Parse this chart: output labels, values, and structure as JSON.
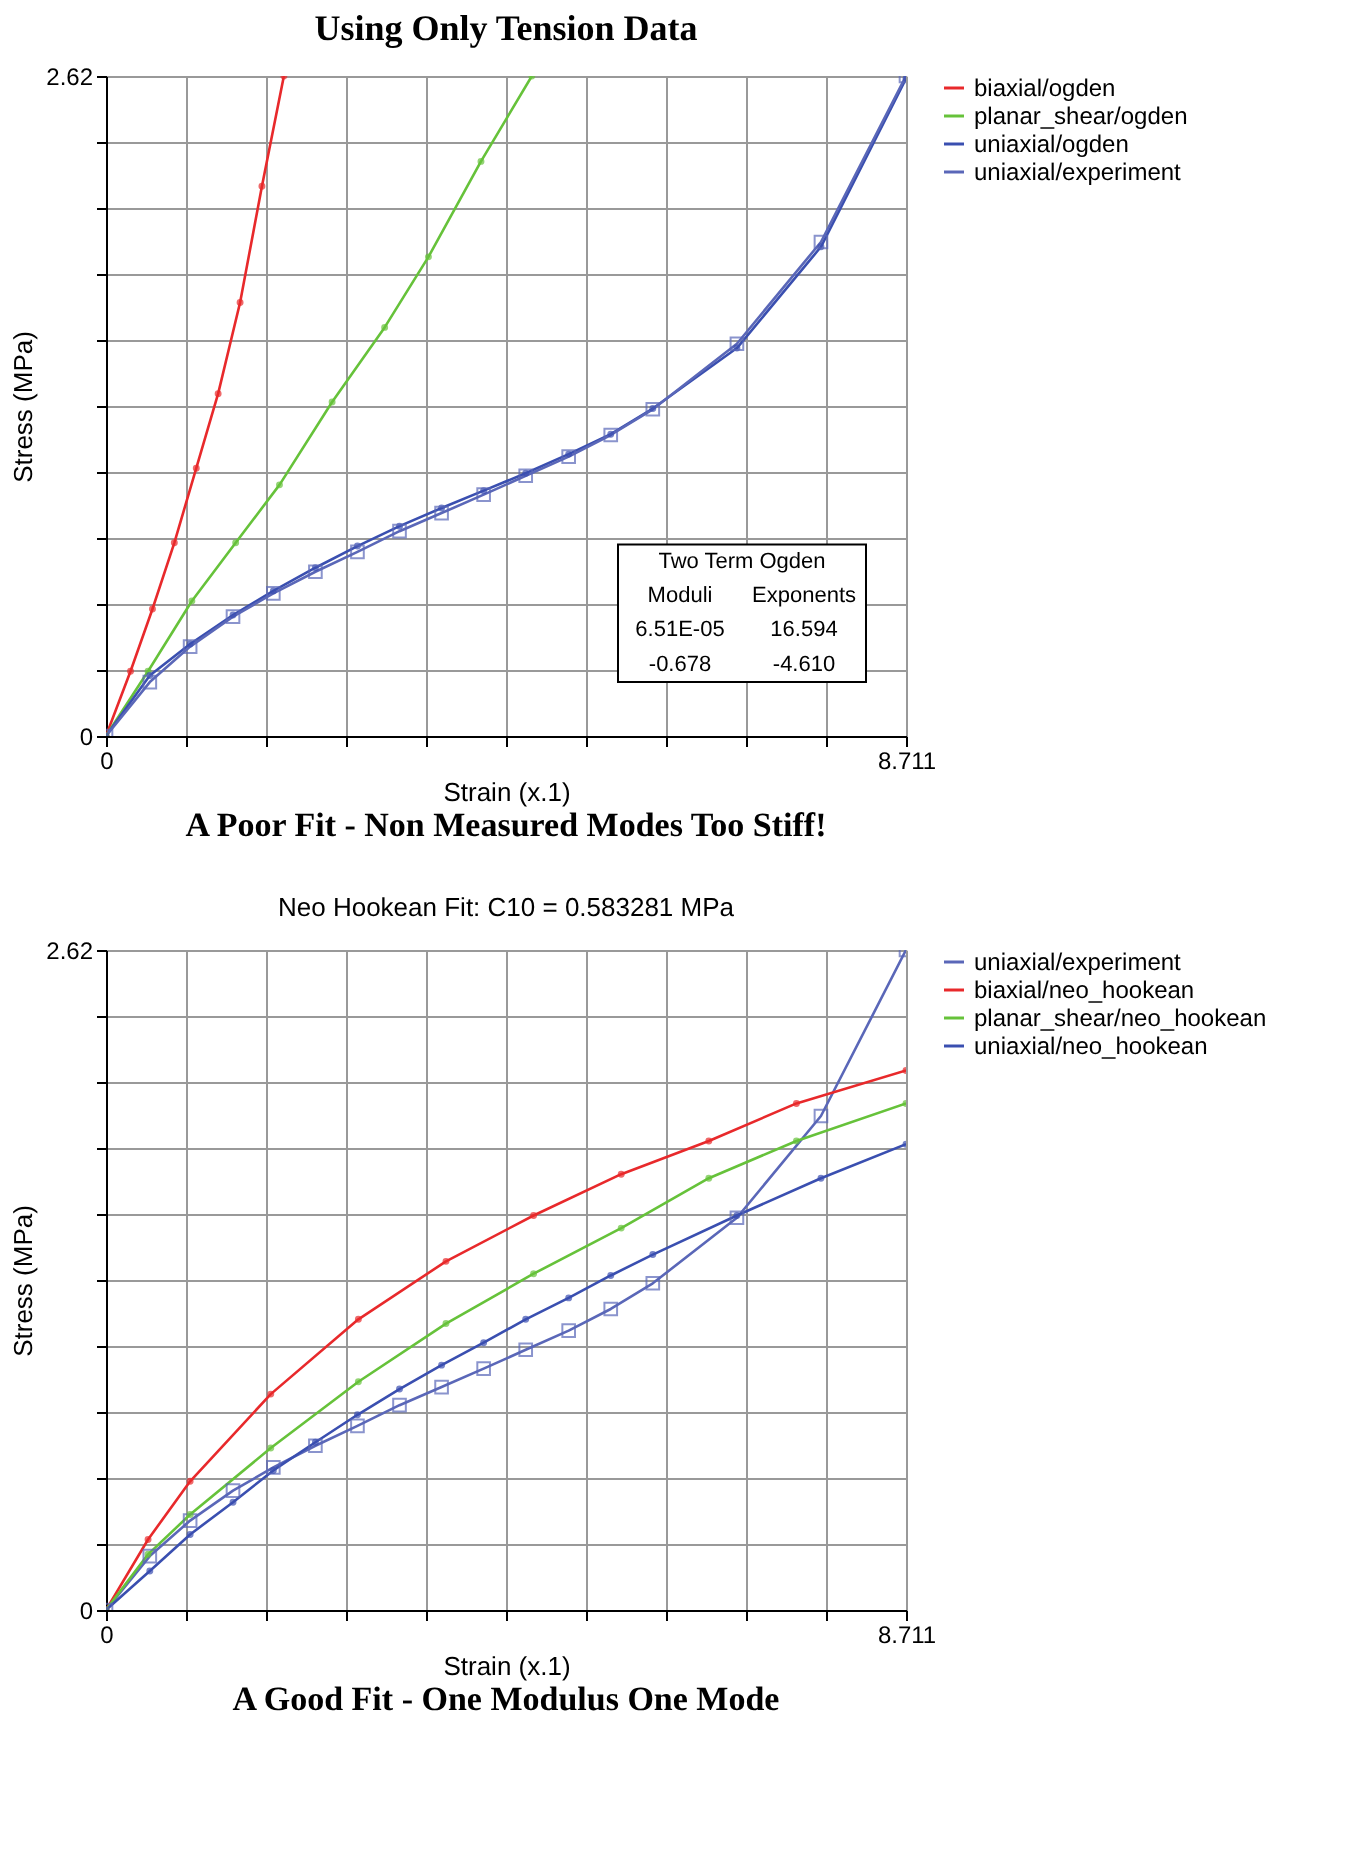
{
  "chart_data": [
    {
      "type": "line",
      "title": "Using Only Tension Data",
      "xlabel": "Strain (x.1)",
      "ylabel": "Stress (MPa)",
      "xlim": [
        0,
        8.711
      ],
      "ylim": [
        0,
        2.62
      ],
      "xticks": [
        0,
        {
          "value": 0.8711,
          "label": null
        },
        {
          "value": 1.7422,
          "label": null
        },
        {
          "value": 2.6133,
          "label": null
        },
        {
          "value": 3.4844,
          "label": null
        },
        {
          "value": 4.3555,
          "label": null
        },
        {
          "value": 5.2266,
          "label": null
        },
        {
          "value": 6.0977,
          "label": null
        },
        {
          "value": 6.9688,
          "label": null
        },
        {
          "value": 7.8399,
          "label": null
        },
        8.711
      ],
      "yticks": [
        0,
        {
          "value": 0.262,
          "label": null
        },
        {
          "value": 0.524,
          "label": null
        },
        {
          "value": 0.786,
          "label": null
        },
        {
          "value": 1.048,
          "label": null
        },
        {
          "value": 1.31,
          "label": null
        },
        {
          "value": 1.572,
          "label": null
        },
        {
          "value": 1.834,
          "label": null
        },
        {
          "value": 2.096,
          "label": null
        },
        {
          "value": 2.358,
          "label": null
        },
        2.62
      ],
      "grid": true,
      "legend": "right",
      "line_style": "solid",
      "annotations": [
        "A Poor Fit - Non Measured Modes Too Stiff!",
        "Two Term Ogden",
        "Moduli",
        "Exponents",
        "6.51E-05",
        "16.594",
        "-0.678",
        "-4.610"
      ],
      "series": [
        {
          "name": "biaxial/ogden",
          "color": "#e8292b",
          "marker": "circle",
          "x": [
            0,
            0.267,
            0.506,
            0.744,
            0.983,
            1.221,
            1.46,
            1.698,
            1.937
          ],
          "values": [
            0,
            0.257,
            0.504,
            0.767,
            1.063,
            1.359,
            1.721,
            2.182,
            2.62
          ]
        },
        {
          "name": "planar_shear/ogden",
          "color": "#66c23a",
          "marker": "circle",
          "x": [
            0,
            0.458,
            0.935,
            1.412,
            1.889,
            2.462,
            3.034,
            3.511,
            4.083,
            4.637
          ],
          "values": [
            0,
            0.257,
            0.536,
            0.767,
            0.997,
            1.326,
            1.622,
            1.902,
            2.281,
            2.62
          ]
        },
        {
          "name": "uniaxial/ogden",
          "color": "#3a4fb0",
          "marker": "circle",
          "x": [
            0,
            0.477,
            0.916,
            1.383,
            1.822,
            2.28,
            2.738,
            3.196,
            3.654,
            4.112,
            4.57,
            5.038,
            5.496,
            5.954,
            6.87,
            7.785,
            8.711
          ],
          "values": [
            0,
            0.24,
            0.365,
            0.48,
            0.576,
            0.668,
            0.754,
            0.833,
            0.905,
            0.974,
            1.043,
            1.119,
            1.198,
            1.3,
            1.54,
            1.942,
            2.61
          ]
        },
        {
          "name": "uniaxial/experiment",
          "color": "#5a67b8",
          "marker": "square",
          "x": [
            0,
            0.477,
            0.916,
            1.383,
            1.822,
            2.28,
            2.738,
            3.196,
            3.654,
            4.112,
            4.57,
            5.038,
            5.496,
            5.954,
            6.87,
            7.785,
            8.711
          ],
          "values": [
            0,
            0.214,
            0.355,
            0.474,
            0.566,
            0.652,
            0.731,
            0.813,
            0.885,
            0.958,
            1.033,
            1.109,
            1.195,
            1.297,
            1.557,
            1.961,
            2.62
          ]
        }
      ]
    },
    {
      "type": "line",
      "title": "Neo Hookean Fit: C10 = 0.583281 MPa",
      "xlabel": "Strain (x.1)",
      "ylabel": "Stress (MPa)",
      "xlim": [
        0,
        8.711
      ],
      "ylim": [
        0,
        2.62
      ],
      "xticks": [
        0,
        {
          "value": 0.8711,
          "label": null
        },
        {
          "value": 1.7422,
          "label": null
        },
        {
          "value": 2.6133,
          "label": null
        },
        {
          "value": 3.4844,
          "label": null
        },
        {
          "value": 4.3555,
          "label": null
        },
        {
          "value": 5.2266,
          "label": null
        },
        {
          "value": 6.0977,
          "label": null
        },
        {
          "value": 6.9688,
          "label": null
        },
        {
          "value": 7.8399,
          "label": null
        },
        8.711
      ],
      "yticks": [
        0,
        {
          "value": 0.262,
          "label": null
        },
        {
          "value": 0.524,
          "label": null
        },
        {
          "value": 0.786,
          "label": null
        },
        {
          "value": 1.048,
          "label": null
        },
        {
          "value": 1.31,
          "label": null
        },
        {
          "value": 1.572,
          "label": null
        },
        {
          "value": 1.834,
          "label": null
        },
        {
          "value": 2.096,
          "label": null
        },
        {
          "value": 2.358,
          "label": null
        },
        2.62
      ],
      "grid": true,
      "legend": "right",
      "line_style": "solid",
      "annotations": [
        "A Good Fit - One Modulus One Mode"
      ],
      "series": [
        {
          "name": "uniaxial/experiment",
          "color": "#5a67b8",
          "marker": "square",
          "x": [
            0,
            0.477,
            0.916,
            1.383,
            1.822,
            2.28,
            2.738,
            3.196,
            3.654,
            4.112,
            4.57,
            5.038,
            5.496,
            5.954,
            6.87,
            7.785,
            8.711
          ],
          "values": [
            0,
            0.214,
            0.355,
            0.474,
            0.566,
            0.652,
            0.731,
            0.813,
            0.885,
            0.958,
            1.033,
            1.109,
            1.195,
            1.297,
            1.557,
            1.961,
            2.62
          ]
        },
        {
          "name": "biaxial/neo_hookean",
          "color": "#e8292b",
          "marker": "circle",
          "x": [
            0,
            0.458,
            0.916,
            1.794,
            2.748,
            3.702,
            4.656,
            5.61,
            6.564,
            7.518,
            8.711
          ],
          "values": [
            0,
            0.28,
            0.511,
            0.857,
            1.154,
            1.384,
            1.566,
            1.73,
            1.862,
            2.011,
            2.142
          ]
        },
        {
          "name": "planar_shear/neo_hookean",
          "color": "#66c23a",
          "marker": "circle",
          "x": [
            0,
            0.458,
            0.916,
            1.794,
            2.748,
            3.702,
            4.656,
            5.61,
            6.564,
            7.518,
            8.711
          ],
          "values": [
            0,
            0.221,
            0.379,
            0.643,
            0.906,
            1.137,
            1.335,
            1.516,
            1.714,
            1.862,
            2.011
          ]
        },
        {
          "name": "uniaxial/neo_hookean",
          "color": "#3a4fb0",
          "marker": "circle",
          "x": [
            0,
            0.477,
            0.916,
            1.383,
            1.822,
            2.28,
            2.738,
            3.196,
            3.654,
            4.112,
            4.57,
            5.038,
            5.496,
            5.954,
            6.87,
            7.785,
            8.711
          ],
          "values": [
            0,
            0.155,
            0.3,
            0.428,
            0.554,
            0.666,
            0.775,
            0.877,
            0.972,
            1.061,
            1.154,
            1.239,
            1.328,
            1.411,
            1.566,
            1.714,
            1.849
          ]
        }
      ]
    }
  ]
}
